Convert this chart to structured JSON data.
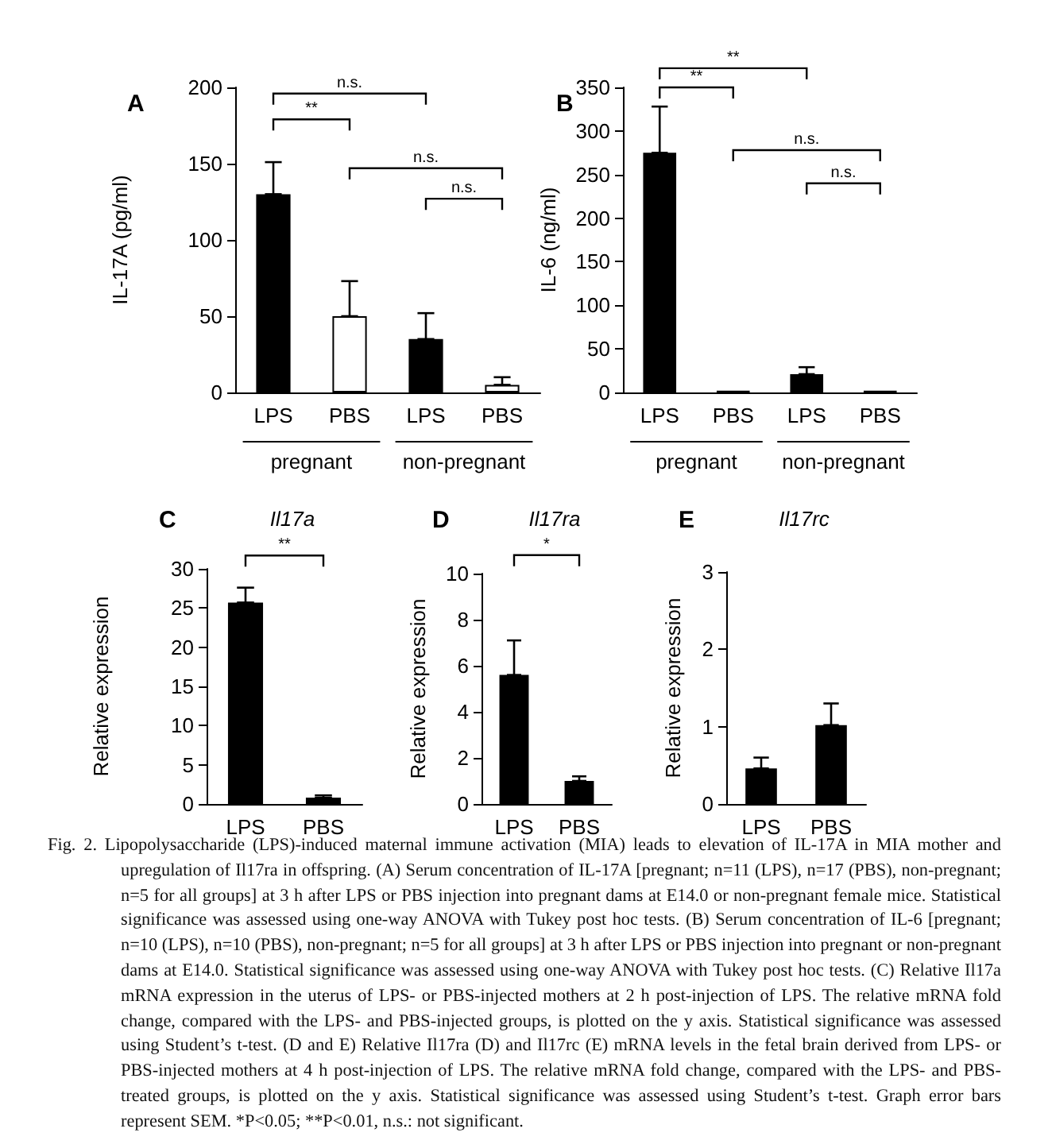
{
  "chart_data": [
    {
      "type": "bar",
      "title": "A",
      "ylabel": "IL-17A (pg/ml)",
      "categories": [
        "LPS",
        "PBS",
        "LPS",
        "PBS"
      ],
      "values": [
        130,
        50,
        35,
        5
      ],
      "colors": [
        "#000000",
        "#ffffff",
        "#000000",
        "#ffffff"
      ],
      "errors": [
        [
          130,
          151
        ],
        [
          50,
          73
        ],
        [
          35,
          52
        ],
        [
          5,
          10
        ]
      ],
      "ylim": [
        0,
        200
      ],
      "yticks": [
        0,
        50,
        100,
        150,
        200
      ],
      "annotations": [
        "n.s.",
        "**",
        "n.s.",
        "n.s.",
        "pregnant",
        "non-pregnant"
      ]
    },
    {
      "type": "bar",
      "title": "B",
      "ylabel": "IL-6 (ng/ml)",
      "categories": [
        "LPS",
        "PBS",
        "LPS",
        "PBS"
      ],
      "values": [
        275,
        2,
        21,
        2
      ],
      "color": "#000000",
      "errors": [
        [
          275,
          328
        ],
        null,
        [
          21,
          29
        ],
        null
      ],
      "ylim": [
        0,
        350
      ],
      "yticks": [
        0,
        50,
        100,
        150,
        200,
        250,
        300,
        350
      ],
      "annotations": [
        "**",
        "**",
        "n.s.",
        "n.s.",
        "pregnant",
        "non-pregnant"
      ]
    },
    {
      "type": "bar",
      "title": "C",
      "subtitle": "Il17a",
      "ylabel": "Relative expression",
      "categories": [
        "LPS",
        "PBS"
      ],
      "values": [
        25.7,
        0.8
      ],
      "color": "#000000",
      "errors": [
        [
          25.7,
          27.6
        ],
        [
          0.8,
          1.1
        ]
      ],
      "ylim": [
        0,
        30
      ],
      "yticks": [
        0,
        5,
        10,
        15,
        20,
        25,
        30
      ],
      "annotations": [
        "**"
      ]
    },
    {
      "type": "bar",
      "title": "D",
      "subtitle": "Il17ra",
      "ylabel": "Relative expression",
      "categories": [
        "LPS",
        "PBS"
      ],
      "values": [
        5.6,
        1.0
      ],
      "color": "#000000",
      "errors": [
        [
          5.6,
          7.1
        ],
        [
          1.0,
          1.2
        ]
      ],
      "ylim": [
        0,
        10
      ],
      "yticks": [
        0,
        2,
        4,
        6,
        8,
        10
      ],
      "annotations": [
        "*"
      ]
    },
    {
      "type": "bar",
      "title": "E",
      "subtitle": "Il17rc",
      "ylabel": "Relative expression",
      "categories": [
        "LPS",
        "PBS"
      ],
      "values": [
        0.46,
        1.02
      ],
      "color": "#000000",
      "errors": [
        [
          0.46,
          0.6
        ],
        [
          1.02,
          1.3
        ]
      ],
      "ylim": [
        0,
        3
      ],
      "yticks": [
        0,
        1,
        2,
        3
      ]
    },
    {
      "type": "other",
      "annotations": [
        "Fig. 2. Lipopolysaccharide (LPS)-induced maternal immune activation (MIA) leads to elevation of IL-17A in MIA mother and upregulation of Il17ra in offspring. (A) Serum concentration of IL-17A [pregnant; n=11 (LPS), n=17 (PBS), non-pregnant; n=5 for all groups] at 3 h after LPS or PBS injection into pregnant dams at E14.0 or non-pregnant female mice. Statistical significance was assessed using one-way ANOVA with Tukey post hoc tests. (B) Serum concentration of IL-6 [pregnant; n=10 (LPS), n=10 (PBS), non-pregnant; n=5 for all groups] at 3 h after LPS or PBS injection into pregnant or non-pregnant dams at E14.0. Statistical significance was assessed using one-way ANOVA with Tukey post hoc tests. (C) Relative Il17a mRNA expression in the uterus of LPS- or PBS-injected mothers at 2 h post-injection of LPS. The relative mRNA fold change, compared with the LPS- and PBS-injected groups, is plotted on the y axis. Statistical significance was assessed using Student’s t-test. (D and E) Relative Il17ra (D) and Il17rc (E) mRNA levels in the fetal brain derived from LPS- or PBS-injected mothers at 4 h post-injection of LPS. The relative mRNA fold change, compared with the LPS- and PBS- treated groups, is plotted on the y axis. Statistical significance was assessed using Student’s t-test. Graph error bars represent SEM. *P<0.05; **P<0.01, n.s.: not significant."
      ]
    }
  ]
}
